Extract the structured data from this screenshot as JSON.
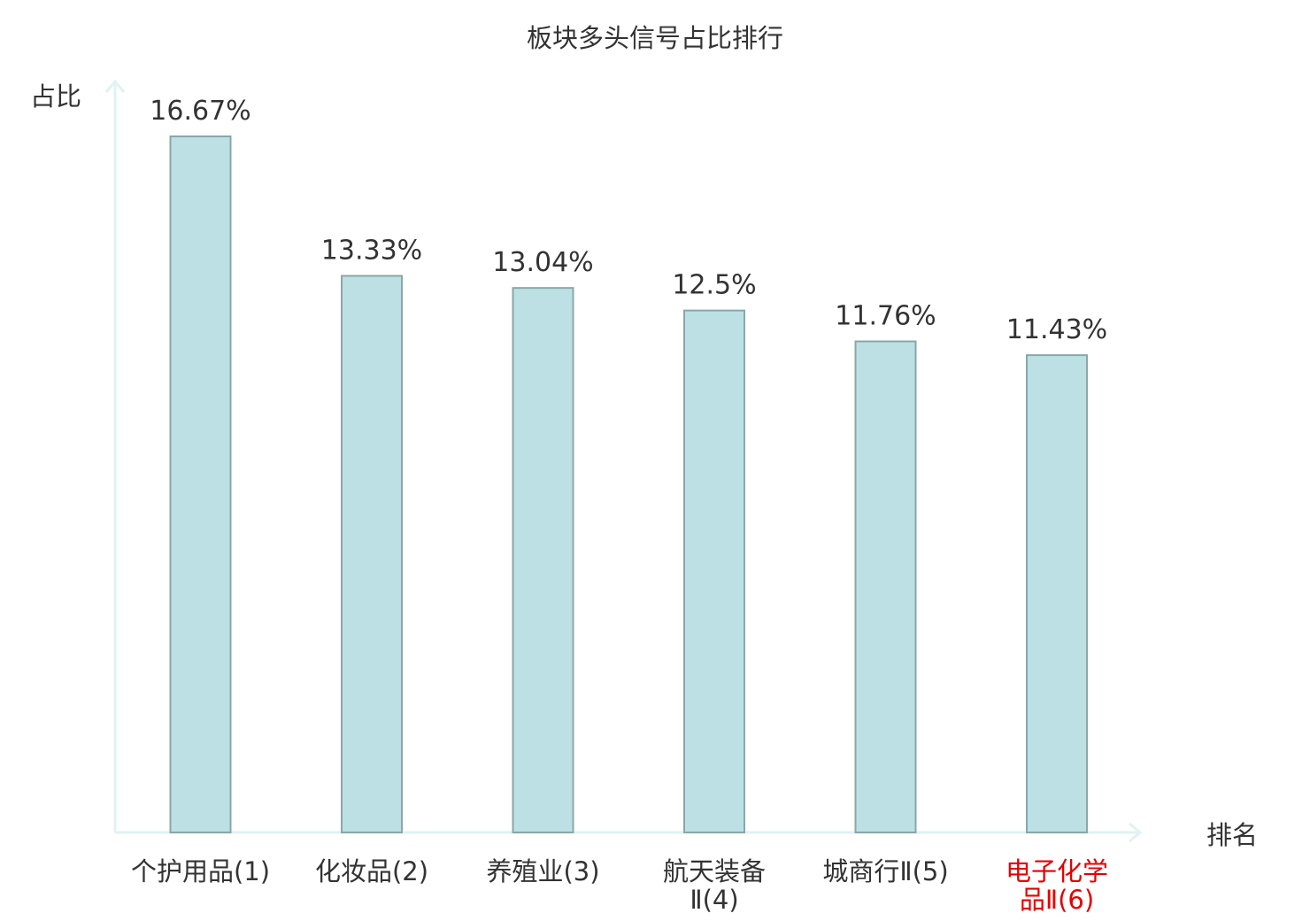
{
  "chart_data": {
    "type": "bar",
    "title": "板块多头信号占比排行",
    "ylabel": "占比",
    "xlabel": "排名",
    "categories": [
      [
        "个护用品(1)"
      ],
      [
        "化妆品(2)"
      ],
      [
        "养殖业(3)"
      ],
      [
        "航天装备",
        "Ⅱ(4)"
      ],
      [
        "城商行Ⅱ(5)"
      ],
      [
        "电子化学",
        "品Ⅱ(6)"
      ]
    ],
    "values": [
      16.67,
      13.33,
      13.04,
      12.5,
      11.76,
      11.43
    ],
    "value_labels": [
      "16.67%",
      "13.33%",
      "13.04%",
      "12.5%",
      "11.76%",
      "11.43%"
    ],
    "highlight_index": 5,
    "ylim": [
      0,
      16.67
    ],
    "grid": false,
    "colors": {
      "bar_fill": "#bce0e3",
      "bar_stroke": "#8aa7aa",
      "axis": "#e0f2f1",
      "text": "#333333",
      "highlight": "#e60000"
    }
  }
}
